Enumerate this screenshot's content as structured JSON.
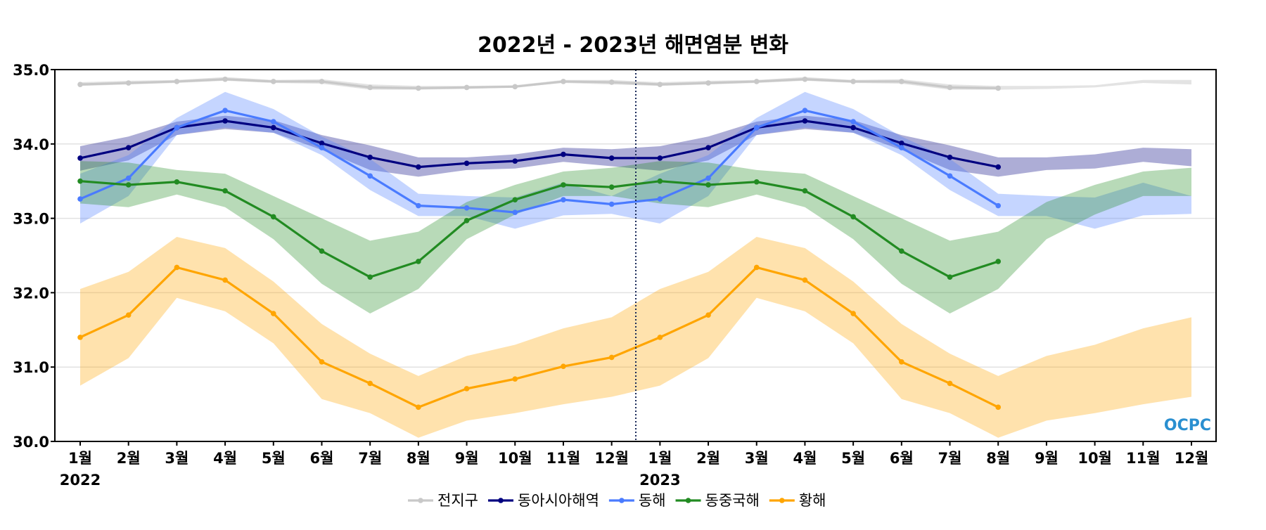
{
  "chart_data": {
    "type": "line",
    "title": "2022년 - 2023년 해면염분 변화",
    "xlabel": "",
    "ylabel": "",
    "ylim": [
      30.0,
      35.0
    ],
    "yticks": [
      "30.0",
      "31.0",
      "32.0",
      "33.0",
      "34.0",
      "35.0"
    ],
    "grid": "horizontal",
    "legend_position": "bottom-center",
    "x_tick_labels": [
      "1월",
      "2월",
      "3월",
      "4월",
      "5월",
      "6월",
      "7월",
      "8월",
      "9월",
      "10월",
      "11월",
      "12월",
      "1월",
      "2월",
      "3월",
      "4월",
      "5월",
      "6월",
      "7월",
      "8월",
      "9월",
      "10월",
      "11월",
      "12월"
    ],
    "year_labels": [
      {
        "index": 0,
        "label": "2022"
      },
      {
        "index": 12,
        "label": "2023"
      }
    ],
    "divider": {
      "between_index": [
        11,
        12
      ],
      "style": "dotted",
      "color": "#1a2a5a"
    },
    "watermark": "OCPC",
    "series": [
      {
        "name": "전지구",
        "color": "#c8c8c8",
        "values": [
          34.8,
          34.82,
          34.84,
          34.87,
          34.84,
          34.84,
          34.76,
          34.75,
          34.76,
          34.77,
          34.84,
          34.83,
          34.8,
          34.82,
          34.84,
          34.87,
          34.84,
          34.84,
          34.76,
          34.75
        ],
        "band_low": [
          34.78,
          34.8,
          34.82,
          34.85,
          34.82,
          34.81,
          34.73,
          34.73,
          34.74,
          34.76,
          34.82,
          34.8
        ],
        "band_high": [
          34.83,
          34.85,
          34.86,
          34.9,
          34.86,
          34.87,
          34.8,
          34.78,
          34.78,
          34.79,
          34.86,
          34.86
        ]
      },
      {
        "name": "동아시아해역",
        "color": "#000080",
        "values": [
          33.81,
          33.95,
          34.22,
          34.31,
          34.22,
          34.01,
          33.82,
          33.69,
          33.74,
          33.77,
          33.86,
          33.81,
          33.81,
          33.95,
          34.22,
          34.31,
          34.22,
          34.01,
          33.82,
          33.69
        ],
        "band_low": [
          33.64,
          33.78,
          34.12,
          34.2,
          34.15,
          33.92,
          33.65,
          33.56,
          33.65,
          33.67,
          33.76,
          33.7
        ],
        "band_high": [
          33.97,
          34.1,
          34.3,
          34.38,
          34.32,
          34.12,
          33.98,
          33.82,
          33.82,
          33.86,
          33.95,
          33.93
        ]
      },
      {
        "name": "동해",
        "color": "#4a7bff",
        "values": [
          33.26,
          33.54,
          34.22,
          34.45,
          34.3,
          33.95,
          33.57,
          33.17,
          33.14,
          33.08,
          33.25,
          33.19,
          33.26,
          33.54,
          34.22,
          34.45,
          34.3,
          33.95,
          33.57,
          33.17
        ],
        "band_low": [
          32.93,
          33.3,
          34.12,
          34.22,
          34.15,
          33.85,
          33.38,
          33.03,
          33.03,
          32.86,
          33.04,
          33.06
        ],
        "band_high": [
          33.6,
          33.85,
          34.35,
          34.7,
          34.47,
          34.1,
          33.8,
          33.33,
          33.3,
          33.28,
          33.48,
          33.3
        ]
      },
      {
        "name": "동중국해",
        "color": "#228b22",
        "values": [
          33.5,
          33.45,
          33.49,
          33.37,
          33.02,
          32.56,
          32.21,
          32.42,
          32.97,
          33.25,
          33.45,
          33.42,
          33.5,
          33.45,
          33.49,
          33.37,
          33.02,
          32.56,
          32.21,
          32.42
        ],
        "band_low": [
          33.2,
          33.15,
          33.32,
          33.15,
          32.72,
          32.12,
          31.72,
          32.05,
          32.72,
          33.05,
          33.3,
          33.3
        ],
        "band_high": [
          33.77,
          33.75,
          33.65,
          33.6,
          33.3,
          33.0,
          32.7,
          32.82,
          33.22,
          33.45,
          33.63,
          33.68
        ]
      },
      {
        "name": "황해",
        "color": "#ffa500",
        "values": [
          31.4,
          31.7,
          32.34,
          32.17,
          31.72,
          31.07,
          30.78,
          30.46,
          30.71,
          30.84,
          31.01,
          31.13,
          31.4,
          31.7,
          32.34,
          32.17,
          31.72,
          31.07,
          30.78,
          30.46
        ],
        "band_low": [
          30.75,
          31.12,
          31.93,
          31.75,
          31.32,
          30.57,
          30.38,
          30.05,
          30.28,
          30.38,
          30.5,
          30.6
        ],
        "band_high": [
          32.05,
          32.28,
          32.75,
          32.6,
          32.15,
          31.58,
          31.18,
          30.88,
          31.15,
          31.3,
          31.52,
          31.67
        ]
      }
    ]
  }
}
